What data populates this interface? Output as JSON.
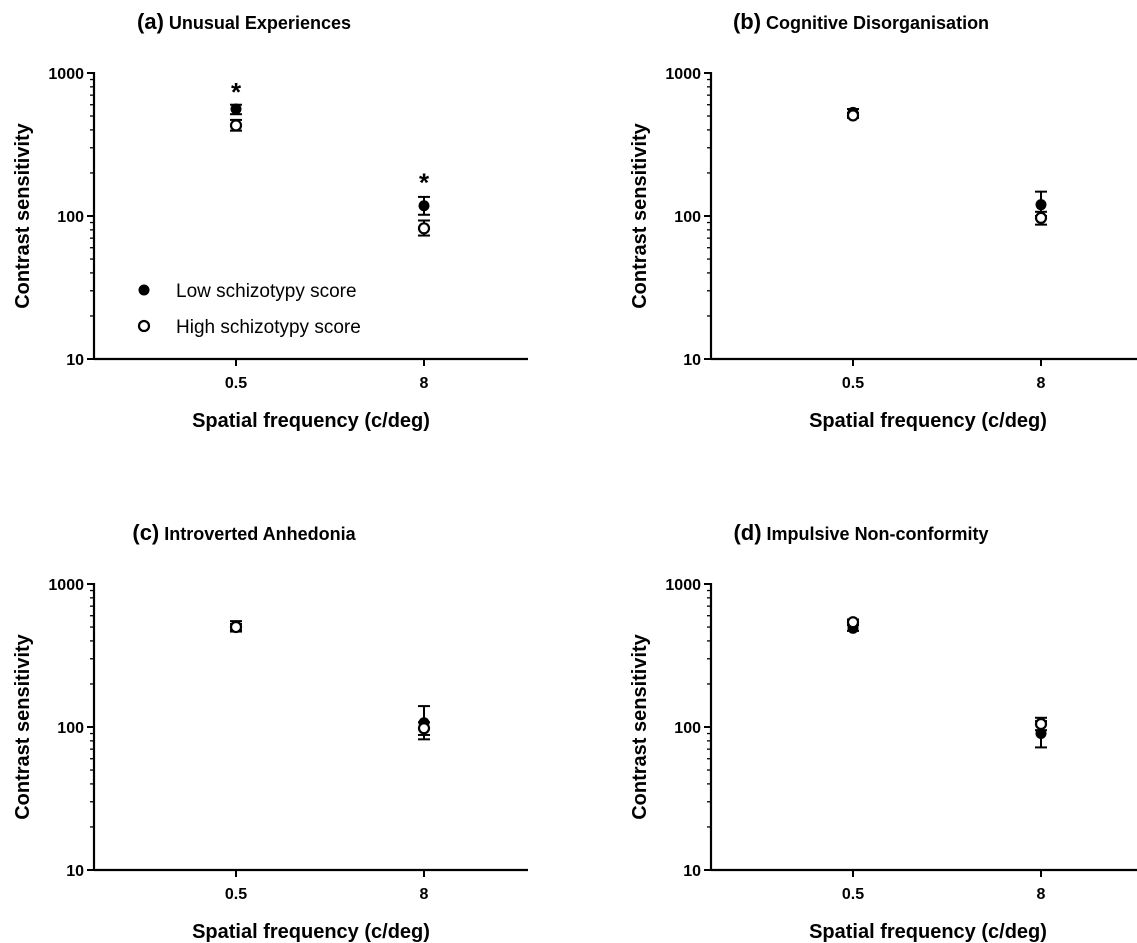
{
  "colors": {
    "marker": "#000000",
    "axis": "#000000",
    "background": "#ffffff"
  },
  "legend": [
    {
      "label": "Low schizotypy score",
      "marker": "filled-circle"
    },
    {
      "label": "High schizotypy score",
      "marker": "open-circle"
    }
  ],
  "chart_data": [
    {
      "type": "scatter",
      "panel_letter": "(a)",
      "title": "Unusual Experiences",
      "xlabel": "Spatial frequency (c/deg)",
      "ylabel": "Contrast sensitivity",
      "categories": [
        "0.5",
        "8"
      ],
      "yscale": "log",
      "ylim": [
        10,
        1000
      ],
      "yticks": [
        "10",
        "100",
        "1000"
      ],
      "legend_placement": "bottom-left",
      "series": [
        {
          "name": "Low schizotypy score",
          "marker": "filled",
          "values": [
            560,
            118
          ],
          "err_low": [
            515,
            102
          ],
          "err_high": [
            600,
            136
          ]
        },
        {
          "name": "High schizotypy score",
          "marker": "open",
          "values": [
            430,
            82
          ],
          "err_low": [
            395,
            73
          ],
          "err_high": [
            470,
            93
          ]
        }
      ],
      "annotations": [
        {
          "text": "*",
          "category": "0.5",
          "y": 800
        },
        {
          "text": "*",
          "category": "8",
          "y": 186
        }
      ]
    },
    {
      "type": "scatter",
      "panel_letter": "(b)",
      "title": "Cognitive Disorganisation",
      "xlabel": "Spatial frequency (c/deg)",
      "ylabel": "Contrast sensitivity",
      "categories": [
        "0.5",
        "8"
      ],
      "yscale": "log",
      "ylim": [
        10,
        1000
      ],
      "yticks": [
        "10",
        "100",
        "1000"
      ],
      "series": [
        {
          "name": "Low schizotypy score",
          "marker": "filled",
          "values": [
            530,
            120
          ],
          "err_low": [
            500,
            100
          ],
          "err_high": [
            560,
            148
          ]
        },
        {
          "name": "High schizotypy score",
          "marker": "open",
          "values": [
            505,
            97
          ],
          "err_low": [
            485,
            87
          ],
          "err_high": [
            525,
            107
          ]
        }
      ],
      "annotations": []
    },
    {
      "type": "scatter",
      "panel_letter": "(c)",
      "title": "Introverted Anhedonia",
      "xlabel": "Spatial frequency (c/deg)",
      "ylabel": "Contrast sensitivity",
      "categories": [
        "0.5",
        "8"
      ],
      "yscale": "log",
      "ylim": [
        10,
        1000
      ],
      "yticks": [
        "10",
        "100",
        "1000"
      ],
      "series": [
        {
          "name": "Low schizotypy score",
          "marker": "filled",
          "values": [
            510,
            107
          ],
          "err_low": [
            465,
            82
          ],
          "err_high": [
            550,
            140
          ]
        },
        {
          "name": "High schizotypy score",
          "marker": "open",
          "values": [
            500,
            98
          ],
          "err_low": [
            475,
            88
          ],
          "err_high": [
            525,
            108
          ]
        }
      ],
      "annotations": []
    },
    {
      "type": "scatter",
      "panel_letter": "(d)",
      "title": "Impulsive Non-conformity",
      "xlabel": "Spatial frequency (c/deg)",
      "ylabel": "Contrast sensitivity",
      "categories": [
        "0.5",
        "8"
      ],
      "yscale": "log",
      "ylim": [
        10,
        1000
      ],
      "yticks": [
        "10",
        "100",
        "1000"
      ],
      "series": [
        {
          "name": "Low schizotypy score",
          "marker": "filled",
          "values": [
            490,
            90
          ],
          "err_low": [
            470,
            72
          ],
          "err_high": [
            515,
            110
          ]
        },
        {
          "name": "High schizotypy score",
          "marker": "open",
          "values": [
            540,
            105
          ],
          "err_low": [
            515,
            95
          ],
          "err_high": [
            565,
            116
          ]
        }
      ],
      "annotations": []
    }
  ]
}
